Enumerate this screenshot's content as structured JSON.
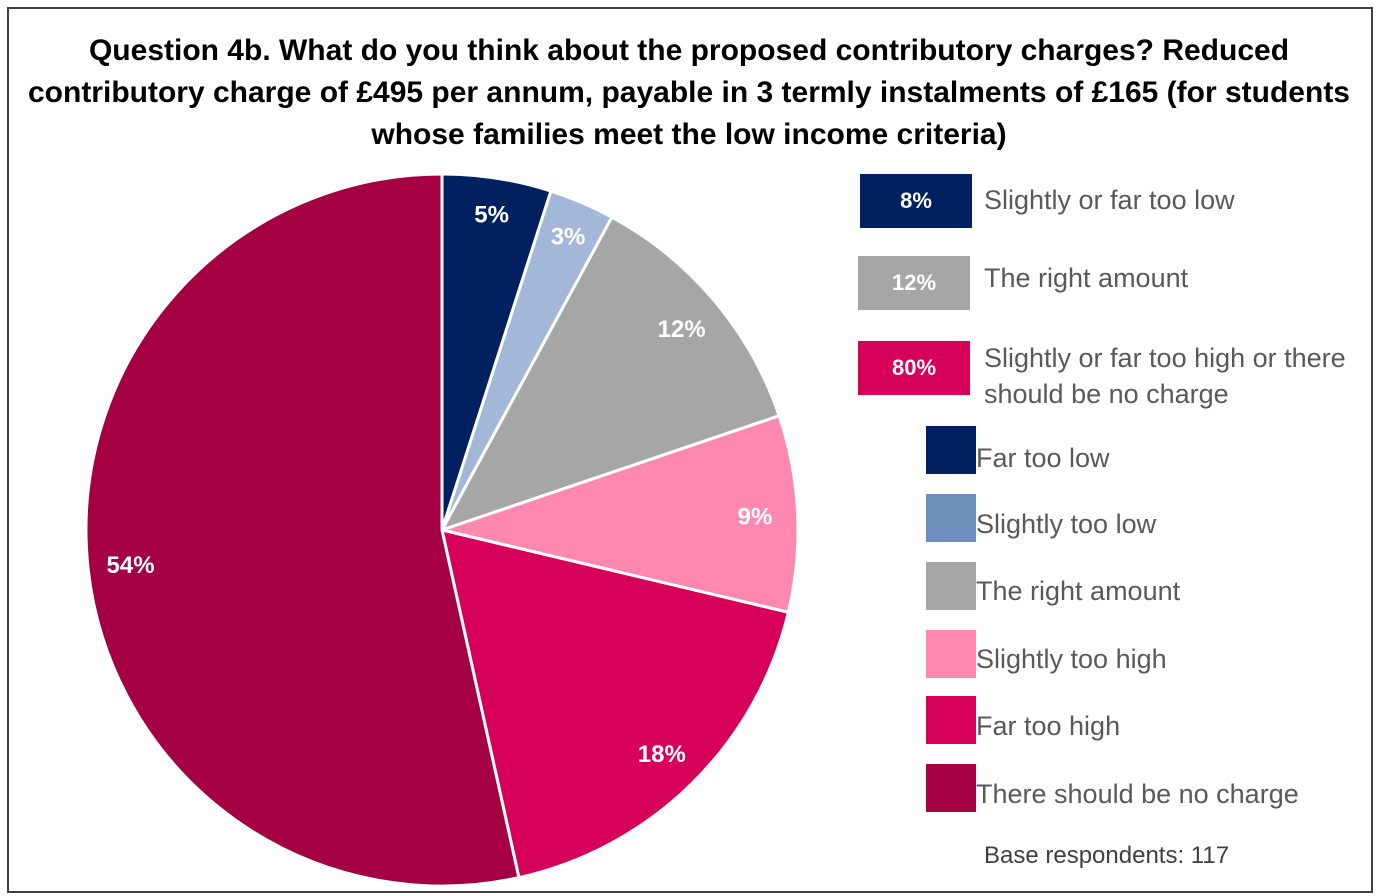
{
  "chart_data": {
    "type": "pie",
    "title": "Question 4b. What do you think about the proposed contributory charges? Reduced contributory charge of £495 per annum, payable in 3 termly instalments of £165 (for students whose families meet the low income criteria)",
    "categories": [
      "Far too low",
      "Slightly too low",
      "The right amount",
      "Slightly too high",
      "Far too high",
      "There should be no charge"
    ],
    "values": [
      5,
      3,
      12,
      9,
      18,
      54
    ],
    "value_labels": [
      "5%",
      "3%",
      "12%",
      "9%",
      "18%",
      "54%"
    ],
    "colors": [
      "#002060",
      "#A3B8D8",
      "#A6A6A6",
      "#FF88B0",
      "#D6005A",
      "#A50042"
    ],
    "legend_colors": [
      "#002060",
      "#6E8EBC",
      "#A6A6A6",
      "#FF88B0",
      "#D6005A",
      "#A50042"
    ],
    "summary": [
      {
        "value": "8%",
        "label": "Slightly or far too low",
        "color": "#002060"
      },
      {
        "value": "12%",
        "label": "The right amount",
        "color": "#A6A6A6"
      },
      {
        "value": "80%",
        "label": "Slightly or far too high or there should be no charge",
        "color": "#D6005A"
      }
    ],
    "legend_placement": "right",
    "base_note": "Base respondents: 117"
  }
}
